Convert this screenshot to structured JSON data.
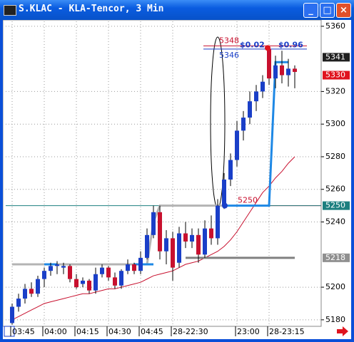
{
  "window": {
    "title": "S.KLAC - KLA-Tencor, 3 Min"
  },
  "chart_data": {
    "type": "candlestick",
    "categories": [
      "03:45",
      null,
      null,
      null,
      null,
      "04:00",
      null,
      null,
      null,
      null,
      "04:15",
      null,
      null,
      null,
      null,
      "04:30",
      null,
      null,
      null,
      null,
      "04:45",
      null,
      null,
      null,
      null,
      "28-22:30",
      null,
      null,
      null,
      null,
      null,
      null,
      null,
      null,
      null,
      "23:00",
      null,
      null,
      null,
      null,
      "28-23:15",
      null,
      null,
      null,
      null
    ],
    "ohlc": [
      [
        5178,
        5190,
        5177,
        5188
      ],
      [
        5188,
        5196,
        5185,
        5193
      ],
      [
        5193,
        5202,
        5190,
        5199
      ],
      [
        5199,
        5203,
        5194,
        5196
      ],
      [
        5196,
        5207,
        5194,
        5205
      ],
      [
        5205,
        5212,
        5200,
        5210
      ],
      [
        5210,
        5215,
        5207,
        5213
      ],
      [
        5213,
        5216,
        5208,
        5214
      ],
      [
        5212,
        5215,
        5208,
        5213
      ],
      [
        5213,
        5214,
        5203,
        5205
      ],
      [
        5205,
        5208,
        5199,
        5200
      ],
      [
        5202,
        5206,
        5200,
        5204
      ],
      [
        5204,
        5205,
        5196,
        5198
      ],
      [
        5198,
        5212,
        5196,
        5208
      ],
      [
        5208,
        5214,
        5206,
        5212
      ],
      [
        5212,
        5213,
        5204,
        5206
      ],
      [
        5206,
        5209,
        5199,
        5201
      ],
      [
        5201,
        5211,
        5199,
        5210
      ],
      [
        5210,
        5217,
        5208,
        5214
      ],
      [
        5214,
        5215,
        5208,
        5210
      ],
      [
        5210,
        5222,
        5208,
        5218
      ],
      [
        5218,
        5236,
        5217,
        5232
      ],
      [
        5232,
        5250,
        5230,
        5246
      ],
      [
        5246,
        5250,
        5217,
        5222
      ],
      [
        5222,
        5235,
        5214,
        5230
      ],
      [
        5230,
        5234,
        5204,
        5212
      ],
      [
        5215,
        5237,
        5212,
        5233
      ],
      [
        5233,
        5240,
        5224,
        5228
      ],
      [
        5228,
        5236,
        5224,
        5232
      ],
      [
        5232,
        5236,
        5215,
        5220
      ],
      [
        5220,
        5241,
        5218,
        5236
      ],
      [
        5236,
        5244,
        5226,
        5230
      ],
      [
        5230,
        5254,
        5226,
        5250
      ],
      [
        5250,
        5270,
        5248,
        5266
      ],
      [
        5266,
        5282,
        5262,
        5278
      ],
      [
        5278,
        5302,
        5274,
        5296
      ],
      [
        5296,
        5308,
        5290,
        5304
      ],
      [
        5304,
        5320,
        5300,
        5314
      ],
      [
        5314,
        5324,
        5308,
        5320
      ],
      [
        5320,
        5330,
        5316,
        5326
      ],
      [
        5346,
        5348,
        5324,
        5328
      ],
      [
        5328,
        5342,
        5322,
        5336
      ],
      [
        5336,
        5345,
        5325,
        5330
      ],
      [
        5330,
        5340,
        5323,
        5334
      ],
      [
        5334,
        5336,
        5322,
        5332
      ]
    ],
    "up_color": "#1a3fc8",
    "down_color": "#c8102e",
    "series": [
      {
        "color": "#c8102e",
        "values": [
          5180,
          5182,
          5184,
          5186,
          5188,
          5190,
          5191,
          5192,
          5193,
          5194,
          5195,
          5196,
          5196,
          5197,
          5198,
          5199,
          5199,
          5200,
          5201,
          5202,
          5203,
          5205,
          5207,
          5208,
          5209,
          5210,
          5212,
          5214,
          5215,
          5216,
          5218,
          5220,
          5222,
          5225,
          5229,
          5234,
          5240,
          5246,
          5252,
          5258,
          5262,
          5267,
          5271,
          5276,
          5280
        ]
      },
      {
        "color": "#b4b4b4",
        "values": [
          5214,
          5214,
          5214,
          5214,
          5214,
          5214,
          5214,
          5214,
          5214,
          5214,
          5214,
          5214,
          5214,
          5214,
          5214,
          5214,
          5214,
          5214,
          5214,
          5214,
          5214,
          5214,
          5240,
          5250,
          5250,
          5250,
          5250,
          5250,
          5250,
          5250,
          5250,
          5250,
          5250,
          5250,
          null,
          null,
          null,
          null,
          null,
          null,
          null,
          null,
          null,
          null,
          null
        ]
      },
      {
        "color": "#808080",
        "values": [
          null,
          null,
          null,
          null,
          null,
          null,
          null,
          null,
          null,
          null,
          null,
          null,
          null,
          null,
          null,
          null,
          null,
          null,
          null,
          null,
          null,
          null,
          null,
          null,
          null,
          null,
          null,
          5218,
          5218,
          5218,
          5218,
          5218,
          5218,
          5218,
          5218,
          5218,
          5218,
          5218,
          5218,
          5218,
          5218,
          5218,
          5218,
          5218,
          5218
        ]
      },
      {
        "color": "#1e88e5",
        "values": [
          null,
          null,
          null,
          null,
          null,
          5214,
          5214,
          5214,
          null,
          null,
          null,
          null,
          null,
          null,
          null,
          null,
          null,
          null,
          null,
          5214,
          5214,
          5214,
          5214,
          null,
          null,
          null,
          null,
          null,
          null,
          null,
          null,
          null,
          null,
          5250,
          5250,
          5250,
          5250,
          5250,
          5250,
          5250,
          5250,
          5338,
          5338,
          5338,
          null
        ]
      }
    ],
    "ylim": [
      5176,
      5363
    ],
    "yticks": [
      5180,
      5200,
      5240,
      5260,
      5280,
      5300,
      5320,
      5360
    ],
    "grid": true,
    "price_markers": [
      {
        "value": 5341,
        "color": "#202020"
      },
      {
        "value": 5330,
        "color": "#e0141e"
      },
      {
        "value": 5250,
        "color": "#1d7f7f"
      },
      {
        "value": 5218,
        "color": "#909090"
      }
    ],
    "levels": [
      {
        "value": 5348,
        "color": "#c8102e"
      },
      {
        "value": 5346,
        "color": "#1a3fc8"
      },
      {
        "value": 5250,
        "color": "#c8102e"
      }
    ],
    "annotations": [
      "$0.02",
      "$0.96"
    ]
  }
}
